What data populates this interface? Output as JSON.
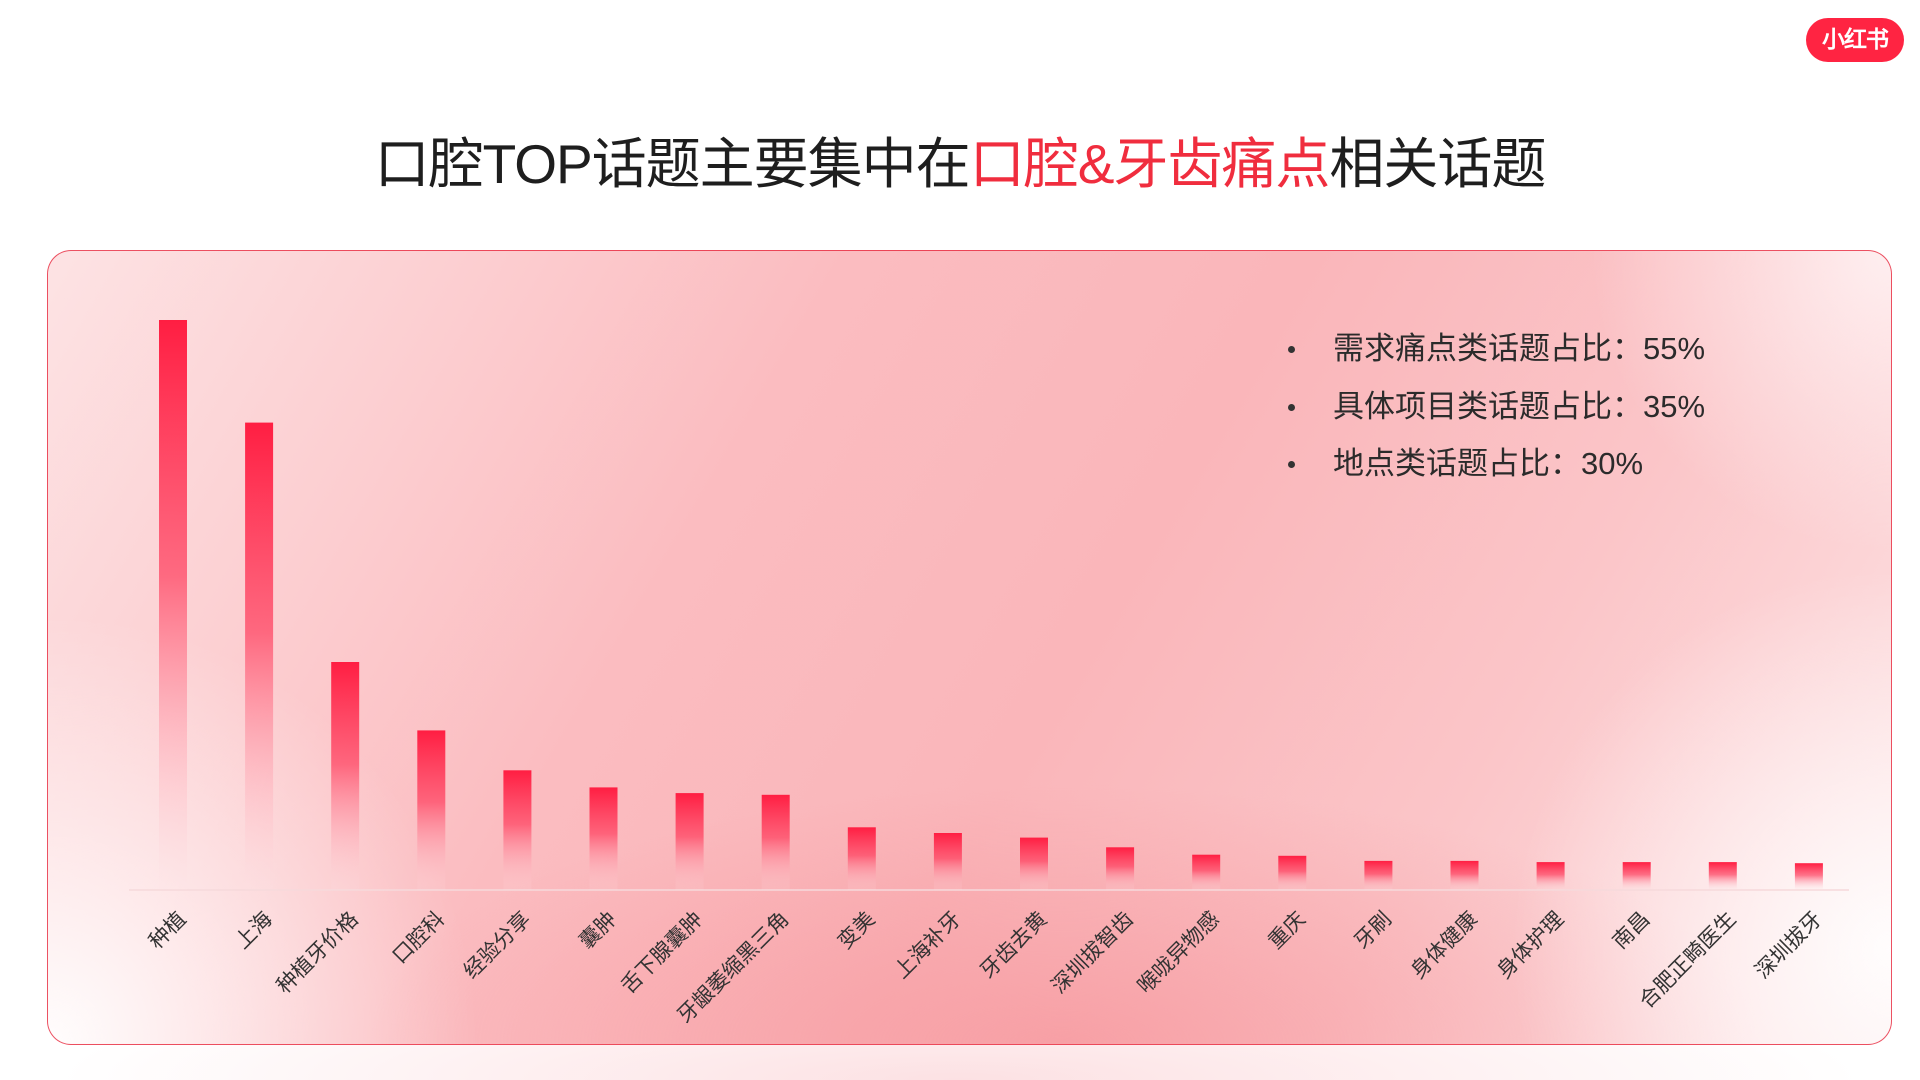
{
  "logo": {
    "text": "小红书",
    "bg_color": "#ff2442"
  },
  "title": {
    "before": "口腔TOP话题主要集中在",
    "highlight": "口腔&牙齿痛点",
    "after": "相关话题",
    "highlight_color": "#f02d3e"
  },
  "chart_data": {
    "type": "bar",
    "categories": [
      "种植",
      "上海",
      "种植牙价格",
      "口腔科",
      "经验分享",
      "囊肿",
      "舌下腺囊肿",
      "牙龈萎缩黑三角",
      "变美",
      "上海补牙",
      "牙齿去黄",
      "深圳拔智齿",
      "喉咙异物感",
      "重庆",
      "牙刷",
      "身体健康",
      "身体护理",
      "南昌",
      "合肥正畸医生",
      "深圳拔牙"
    ],
    "values": [
      100,
      82,
      40,
      28,
      21,
      18,
      17,
      16.7,
      11,
      10,
      9.2,
      7.5,
      6.2,
      6,
      5.1,
      5.1,
      4.9,
      4.9,
      4.9,
      4.7
    ],
    "y_axis_visible": false,
    "grid": false,
    "bar_color": "#ff1e42",
    "annotations": [
      "需求痛点类话题占比：55%",
      "具体项目类话题占比：35%",
      "地点类话题占比：30%"
    ],
    "annotation_placement": "top-right"
  }
}
